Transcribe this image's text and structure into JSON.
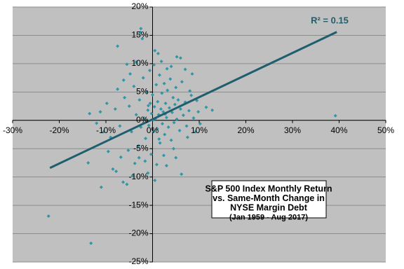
{
  "chart_data": {
    "type": "scatter",
    "title_lines": [
      "S&P 500  Index Monthly Return",
      "vs. Same-Month Change in",
      "NYSE Margin Debt",
      "(Jan 1959 - Aug 2017)"
    ],
    "annotation": "R² = 0.15",
    "color": "#2f97a8",
    "trend_color": "#1f5e6e",
    "background": "#c0c0c0",
    "grid": true,
    "trendline": {
      "x": [
        -22,
        39.5
      ],
      "y": [
        -8.4,
        15.6
      ]
    },
    "x": [
      -22.3,
      -13.2,
      39.2,
      -13.5,
      -13.8,
      -11,
      -7.5,
      -2.5,
      -2.6,
      -2.2,
      0.5,
      1.2,
      -5.5,
      -6.2,
      -3.5,
      5.2,
      6,
      4,
      7,
      8.5,
      12.8,
      11.5,
      10.2,
      9.5,
      8,
      7.5,
      6.2,
      5,
      3,
      0.5,
      -1,
      -4.3,
      -5.5,
      -6.3,
      -7.8,
      -8.5,
      -9.5,
      -9,
      -10.5,
      -11.2,
      -8,
      -7,
      -6,
      -5,
      -4.5,
      -4,
      -3.5,
      -3,
      -2.8,
      -2.5,
      -2,
      -1.8,
      -1.5,
      -1.2,
      -1,
      -0.8,
      -0.5,
      -0.3,
      -0.2,
      0,
      0.2,
      0.4,
      0.6,
      0.8,
      1,
      1.1,
      1.3,
      1.5,
      1.6,
      1.8,
      2,
      2.1,
      2.3,
      2.5,
      2.6,
      2.8,
      3,
      3.2,
      3.4,
      3.6,
      3.8,
      4,
      4.2,
      4.4,
      4.6,
      4.8,
      5,
      5.2,
      5.5,
      5.8,
      6,
      6.3,
      6.6,
      7,
      7.3,
      7.8,
      8.3,
      8.8,
      9.2,
      9.8,
      -0.6,
      0.3,
      1.9,
      3.1,
      -1.6,
      0.9,
      2.4,
      -2.9,
      -5.2,
      -6.8,
      -3.8,
      4.5,
      -7.5,
      -9.8,
      -12,
      -4.8,
      1.4,
      0.1,
      2.7,
      -0.9
    ],
    "y": [
      -16.9,
      -21.7,
      0.8,
      1.2,
      -7.5,
      -11.8,
      13.1,
      16.2,
      15.5,
      14.4,
      12.3,
      11.8,
      9.9,
      7.1,
      10.3,
      11.2,
      11,
      9.5,
      9,
      8.2,
      1.8,
      2.3,
      -0.6,
      3.5,
      5.2,
      -3,
      -9.5,
      -6.6,
      -8,
      -10.6,
      -9.3,
      -9.8,
      -11.3,
      -10.9,
      -9,
      -8.6,
      -5.5,
      -3,
      -2,
      1.5,
      2,
      -1,
      4,
      2.5,
      -2,
      6,
      1,
      -4.5,
      3.6,
      -1.2,
      7.5,
      0.4,
      -3.2,
      5,
      1.8,
      -0.9,
      3,
      -6,
      1.2,
      4.5,
      -2,
      2.4,
      0.3,
      6.3,
      -1.5,
      3.3,
      1,
      8,
      -4,
      2,
      4.8,
      -0.6,
      1.5,
      6.5,
      -2.5,
      3,
      0.5,
      5.3,
      -1.2,
      2.2,
      7.3,
      -3.5,
      1.4,
      4,
      -0.4,
      2.8,
      5.8,
      0.2,
      3.6,
      -1.8,
      2,
      6.8,
      0.9,
      3.2,
      -1,
      1.7,
      4.4,
      0.4,
      -2,
      1.5,
      8.8,
      9.8,
      10.4,
      9.1,
      -7.2,
      -7.8,
      -6.2,
      -6.6,
      -5.3,
      -6.5,
      -7.6,
      -5,
      5.5,
      3,
      -0.5,
      8.2,
      -3.3,
      0.1,
      1.1,
      2.6
    ],
    "xlim": [
      -30,
      50
    ],
    "ylim": [
      -25,
      20
    ],
    "xticks": [
      {
        "value": -30,
        "label": "-30%"
      },
      {
        "value": -20,
        "label": "-20%"
      },
      {
        "value": -10,
        "label": "-10%"
      },
      {
        "value": 0,
        "label": "0%"
      },
      {
        "value": 10,
        "label": "10%"
      },
      {
        "value": 20,
        "label": "20%"
      },
      {
        "value": 30,
        "label": "30%"
      },
      {
        "value": 40,
        "label": "40%"
      },
      {
        "value": 50,
        "label": "50%"
      }
    ],
    "yticks": [
      {
        "value": -25,
        "label": "-25%"
      },
      {
        "value": -20,
        "label": "-20%"
      },
      {
        "value": -15,
        "label": "-15%"
      },
      {
        "value": -10,
        "label": "-10%"
      },
      {
        "value": -5,
        "label": "-5%"
      },
      {
        "value": 0,
        "label": "0%"
      },
      {
        "value": 5,
        "label": "5%"
      },
      {
        "value": 10,
        "label": "10%"
      },
      {
        "value": 15,
        "label": "15%"
      },
      {
        "value": 20,
        "label": "20%"
      }
    ]
  }
}
